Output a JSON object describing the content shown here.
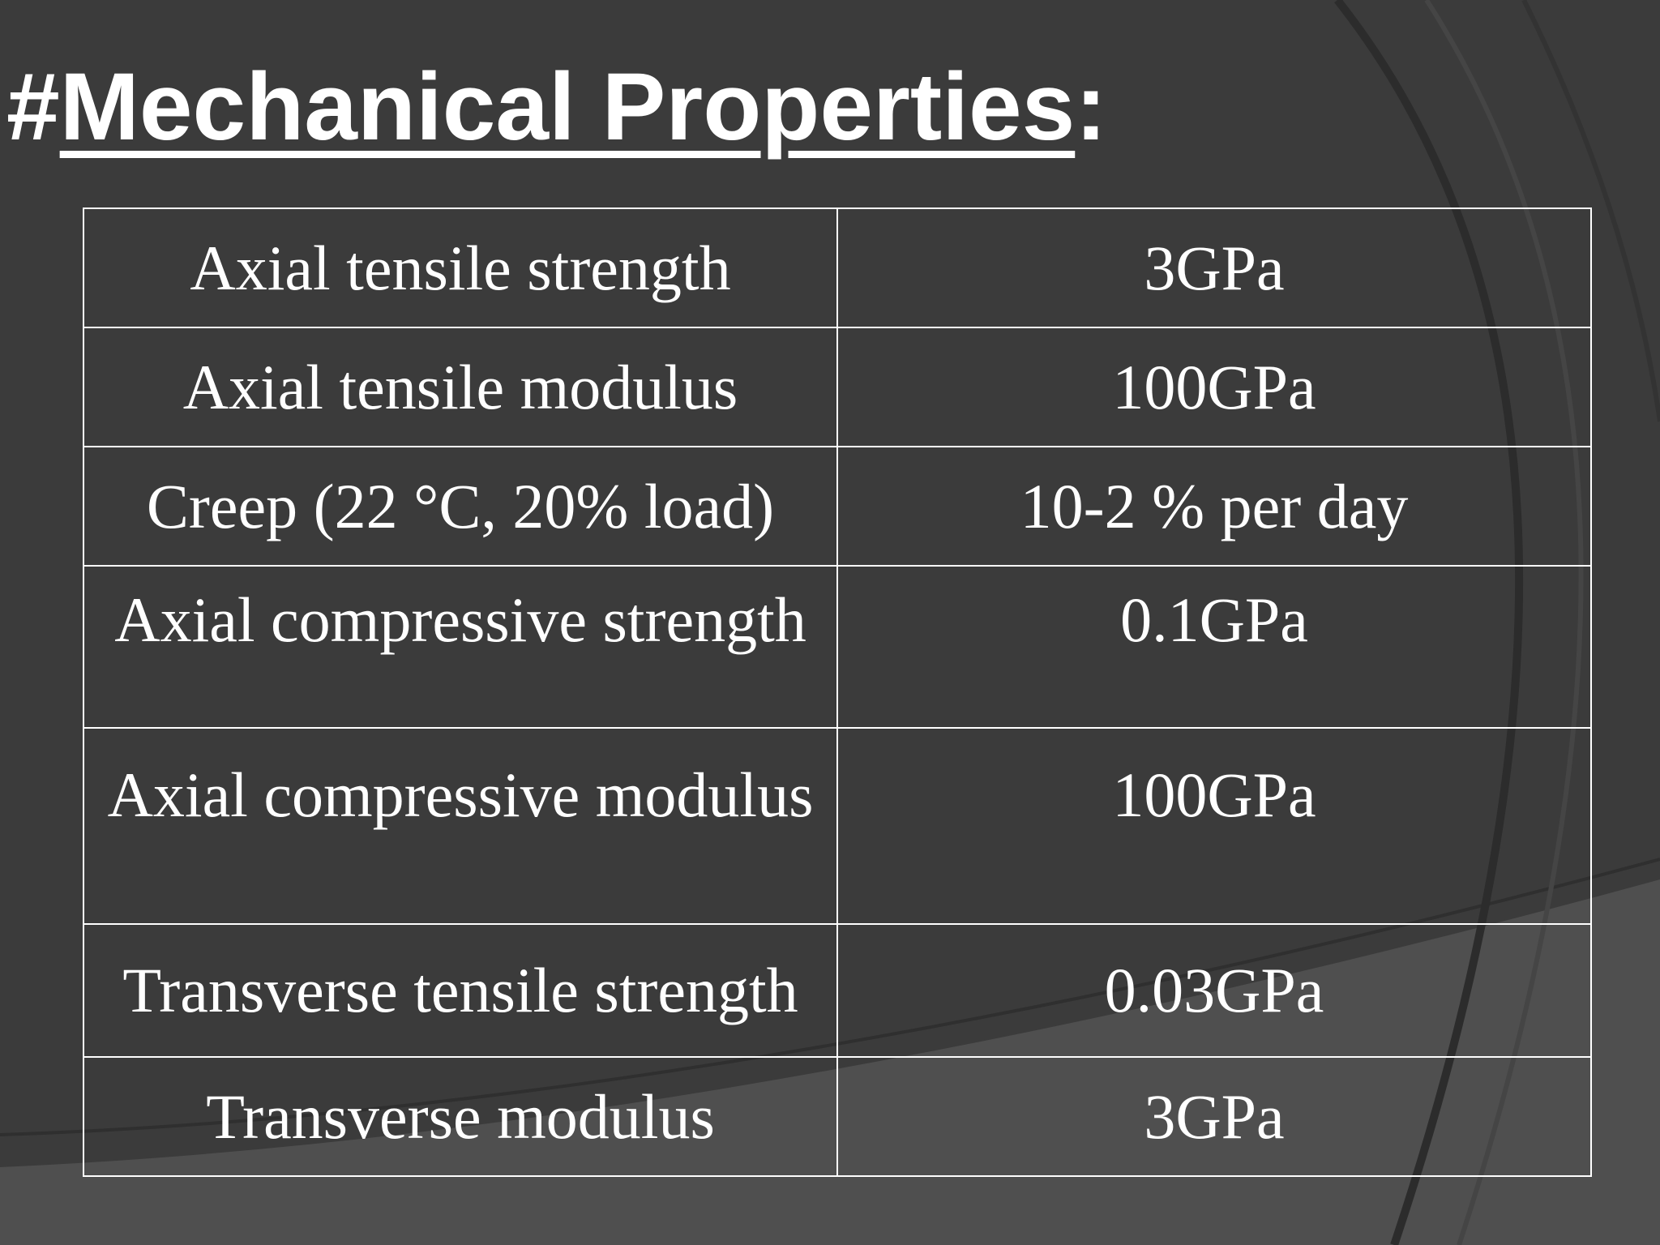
{
  "slide": {
    "title_prefix": "#",
    "title_main": "Mechanical Properties",
    "title_suffix": ":"
  },
  "properties": {
    "rows": [
      {
        "property": "Axial tensile strength",
        "value": "3GPa"
      },
      {
        "property": "Axial tensile modulus",
        "value": "100GPa"
      },
      {
        "property": "Creep (22 °C, 20% load)",
        "value": "10-2 % per day"
      },
      {
        "property": "Axial compressive strength",
        "value": "0.1GPa"
      },
      {
        "property": "Axial compressive modulus",
        "value": "100GPa"
      },
      {
        "property": "Transverse tensile strength",
        "value": "0.03GPa"
      },
      {
        "property": "Transverse modulus",
        "value": "3GPa"
      }
    ]
  },
  "colors": {
    "background": "#3b3b3b",
    "text": "#ffffff",
    "border": "#ffffff"
  }
}
